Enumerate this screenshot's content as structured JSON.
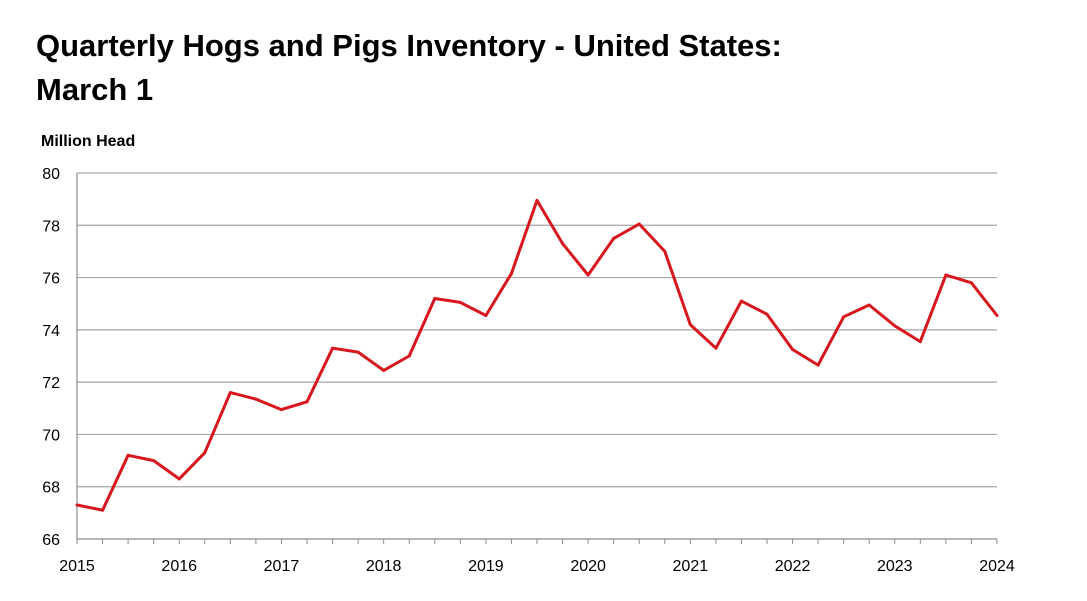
{
  "chart_data": {
    "type": "line",
    "title": "Quarterly Hogs and Pigs Inventory - United States: March 1",
    "title_lines": [
      "Quarterly Hogs and Pigs Inventory - United States:",
      "March 1"
    ],
    "ylabel": "Million Head",
    "xlabel": "",
    "xlim": [
      2015,
      2024
    ],
    "ylim": [
      66,
      80
    ],
    "yticks": [
      66,
      68,
      70,
      72,
      74,
      76,
      78,
      80
    ],
    "xticks": [
      2015,
      2016,
      2017,
      2018,
      2019,
      2020,
      2021,
      2022,
      2023,
      2024
    ],
    "grid": "horizontal",
    "line_color": "#d7161d",
    "x": [
      2015,
      2015.25,
      2015.5,
      2015.75,
      2016,
      2016.25,
      2016.5,
      2016.75,
      2017,
      2017.25,
      2017.5,
      2017.75,
      2018,
      2018.25,
      2018.5,
      2018.75,
      2019,
      2019.25,
      2019.5,
      2019.75,
      2020,
      2020.25,
      2020.5,
      2020.75,
      2021,
      2021.25,
      2021.5,
      2021.75,
      2022,
      2022.25,
      2022.5,
      2022.75,
      2023,
      2023.25,
      2023.5,
      2023.75,
      2024
    ],
    "values": [
      67.3,
      67.1,
      69.2,
      69.0,
      68.3,
      69.3,
      71.6,
      71.35,
      70.95,
      71.25,
      73.3,
      73.15,
      72.45,
      73.0,
      75.2,
      75.05,
      74.55,
      76.15,
      78.95,
      77.3,
      76.1,
      77.5,
      78.05,
      77.0,
      74.2,
      73.3,
      75.1,
      74.6,
      73.25,
      72.65,
      74.5,
      74.95,
      74.15,
      73.55,
      76.1,
      75.8,
      74.55
    ]
  }
}
